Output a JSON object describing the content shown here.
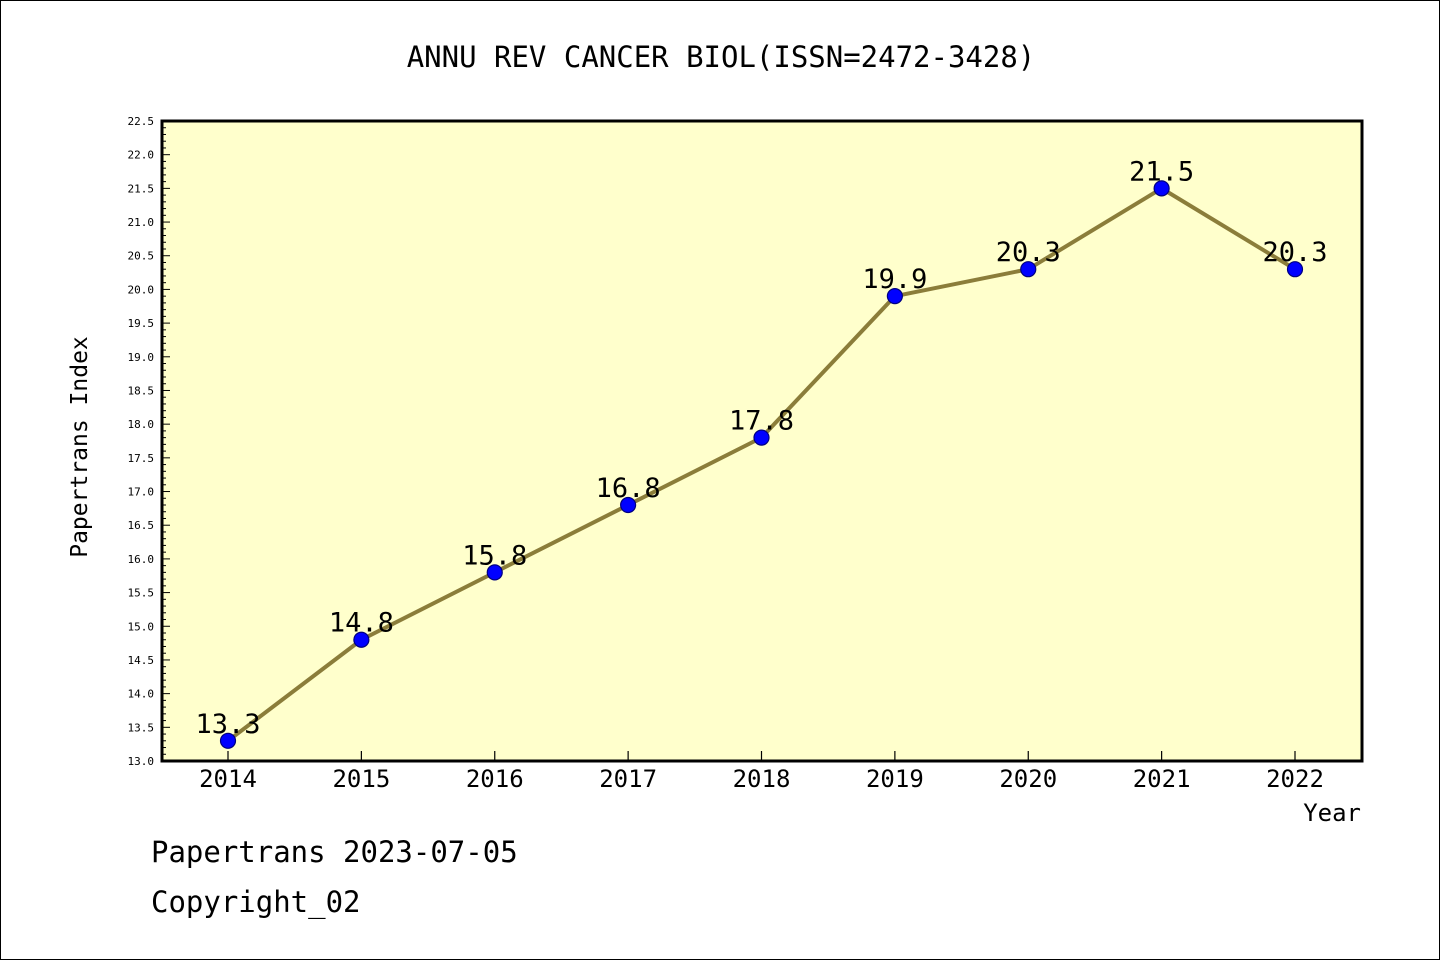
{
  "chart_data": {
    "type": "line",
    "title": "ANNU REV CANCER BIOL(ISSN=2472-3428)",
    "xlabel": "Year",
    "ylabel": "Papertrans Index",
    "categories": [
      "2014",
      "2015",
      "2016",
      "2017",
      "2018",
      "2019",
      "2020",
      "2021",
      "2022"
    ],
    "series": [
      {
        "values": [
          13.3,
          14.8,
          15.8,
          16.8,
          17.8,
          19.9,
          20.3,
          21.5,
          20.3
        ],
        "data_labels": [
          "13.3",
          "14.8",
          "15.8",
          "16.8",
          "17.8",
          "19.9",
          "20.3",
          "21.5",
          "20.3"
        ]
      }
    ],
    "ylim": [
      13.0,
      22.5
    ],
    "ytick_step": 0.5,
    "ytick_labels": [
      "13.0",
      "13.5",
      "14.0",
      "14.5",
      "15.0",
      "15.5",
      "16.0",
      "16.5",
      "17.0",
      "17.5",
      "18.0",
      "18.5",
      "19.0",
      "19.5",
      "20.0",
      "20.5",
      "21.0",
      "21.5",
      "22.0",
      "22.5"
    ],
    "grid": false,
    "legend": "none",
    "colors": {
      "plot_background": "#ffffcc",
      "line": "#8b7d3a",
      "marker": "#0000ff",
      "marker_edge": "#000080",
      "text": "#000000"
    }
  },
  "footer": {
    "line1": "Papertrans 2023-07-05",
    "line2": "Copyright_02"
  }
}
